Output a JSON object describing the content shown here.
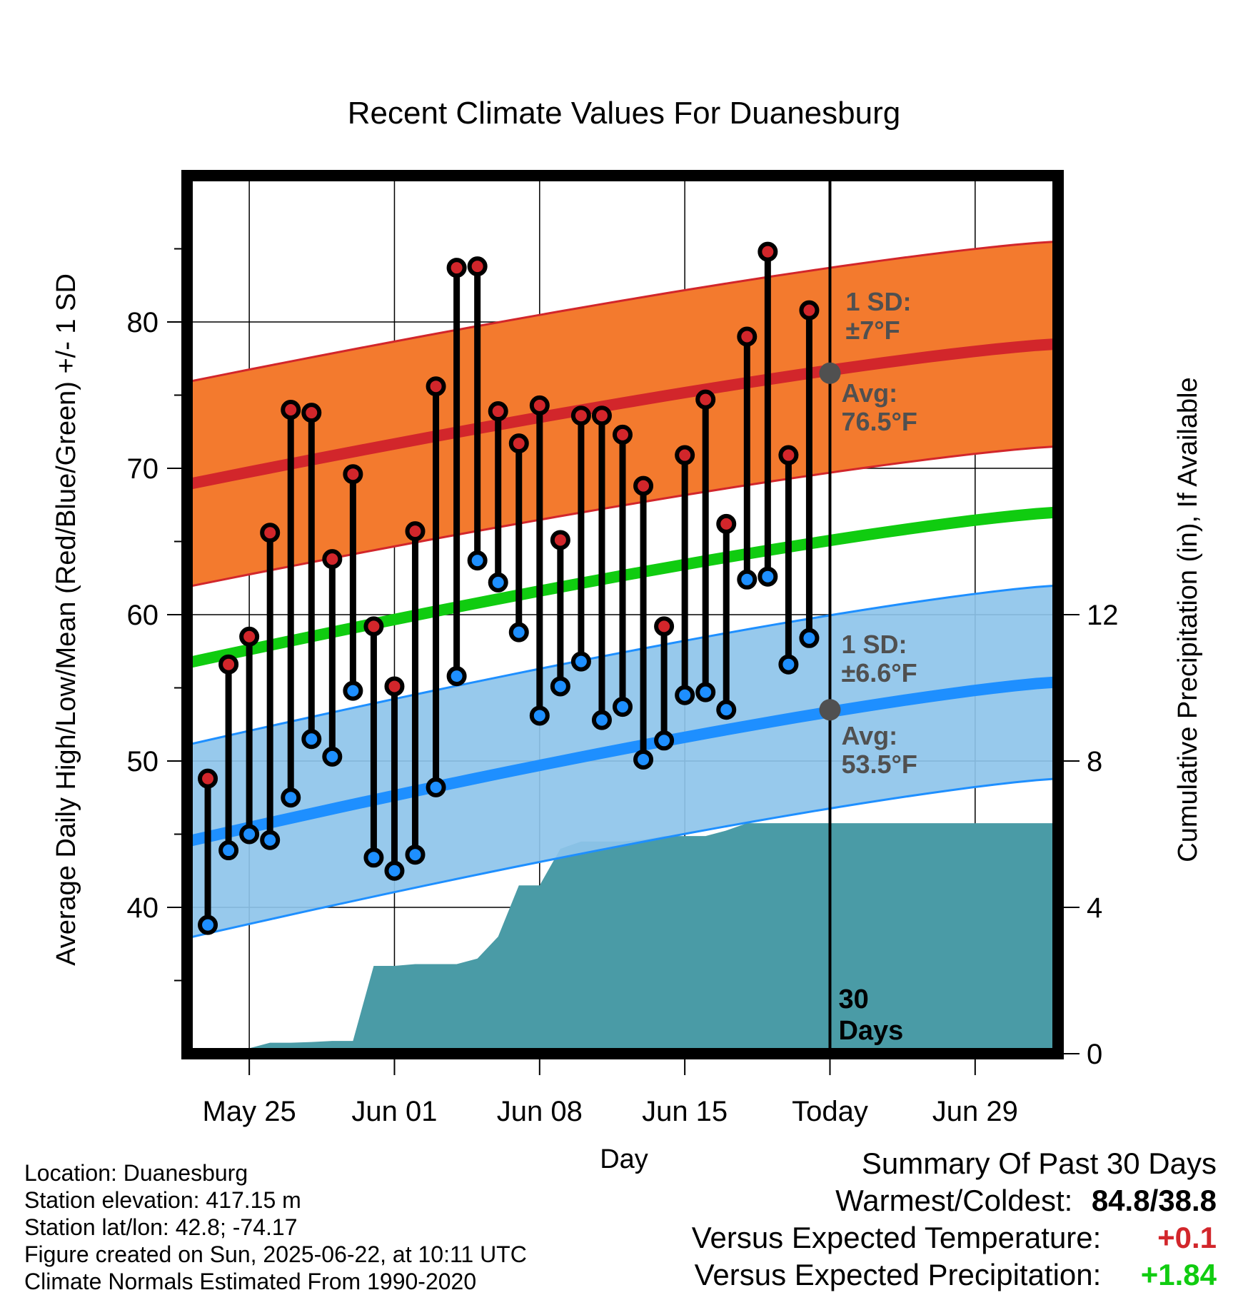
{
  "chart_data": {
    "type": "line",
    "title": "Recent Climate Values For Duanesburg",
    "xlabel": "Day",
    "ylabel": "Average Daily High/Low/Mean (Red/Blue/Green) +/- 1 SD",
    "y2label": "Cumulative Precipitation (in), If Available",
    "ylim": [
      30,
      90
    ],
    "y2lim": [
      0,
      24
    ],
    "yticks": [
      40,
      50,
      60,
      70,
      80
    ],
    "y2ticks": [
      0,
      4,
      8,
      12
    ],
    "x_range": [
      "2025-05-22",
      "2025-07-03"
    ],
    "x_tick_labels": [
      {
        "date": "2025-05-25",
        "label": "May 25"
      },
      {
        "date": "2025-06-01",
        "label": "Jun 01"
      },
      {
        "date": "2025-06-08",
        "label": "Jun 08"
      },
      {
        "date": "2025-06-15",
        "label": "Jun 15"
      },
      {
        "date": "2025-06-22",
        "label": "Today"
      },
      {
        "date": "2025-06-29",
        "label": "Jun 29"
      }
    ],
    "grid": true,
    "today": "2025-06-22",
    "window_label": "30\nDays",
    "daily_dates": [
      "2025-05-23",
      "2025-05-24",
      "2025-05-25",
      "2025-05-26",
      "2025-05-27",
      "2025-05-28",
      "2025-05-29",
      "2025-05-30",
      "2025-05-31",
      "2025-06-01",
      "2025-06-02",
      "2025-06-03",
      "2025-06-04",
      "2025-06-05",
      "2025-06-06",
      "2025-06-07",
      "2025-06-08",
      "2025-06-09",
      "2025-06-10",
      "2025-06-11",
      "2025-06-12",
      "2025-06-13",
      "2025-06-14",
      "2025-06-15",
      "2025-06-16",
      "2025-06-17",
      "2025-06-18",
      "2025-06-19",
      "2025-06-20",
      "2025-06-21"
    ],
    "series": [
      {
        "name": "High",
        "color": "#d2262b",
        "values": [
          48.8,
          56.6,
          58.5,
          65.6,
          74.0,
          73.8,
          63.8,
          69.6,
          59.2,
          55.1,
          65.7,
          75.6,
          83.7,
          83.8,
          73.9,
          71.7,
          74.3,
          65.1,
          73.6,
          73.6,
          72.3,
          68.8,
          59.2,
          70.9,
          74.7,
          66.2,
          79.0,
          84.8,
          70.9,
          80.8
        ]
      },
      {
        "name": "Low",
        "color": "#1e8fff",
        "values": [
          38.8,
          43.9,
          45.0,
          44.6,
          47.5,
          51.5,
          50.3,
          54.8,
          43.4,
          42.5,
          43.6,
          48.2,
          55.8,
          63.7,
          62.2,
          58.8,
          53.1,
          55.1,
          56.8,
          52.8,
          53.7,
          50.1,
          51.4,
          54.5,
          54.7,
          53.5,
          62.4,
          62.6,
          56.6,
          58.4
        ]
      },
      {
        "name": "Avg High",
        "color": "#d2262b",
        "start": 68.9,
        "end": 78.5,
        "sd": 7.0
      },
      {
        "name": "Avg Low",
        "color": "#1e8fff",
        "start": 44.5,
        "end": 55.4,
        "sd": 6.6
      },
      {
        "name": "Avg Mean",
        "color": "#10cc10",
        "start": 56.7,
        "end": 67.0
      }
    ],
    "precipitation": {
      "color": "#4a9ba6",
      "points": [
        {
          "date": "2025-05-22",
          "value": 0.0
        },
        {
          "date": "2025-05-23",
          "value": 0.05
        },
        {
          "date": "2025-05-24",
          "value": 0.08
        },
        {
          "date": "2025-05-25",
          "value": 0.15
        },
        {
          "date": "2025-05-26",
          "value": 0.3
        },
        {
          "date": "2025-05-27",
          "value": 0.3
        },
        {
          "date": "2025-05-28",
          "value": 0.32
        },
        {
          "date": "2025-05-29",
          "value": 0.35
        },
        {
          "date": "2025-05-30",
          "value": 0.35
        },
        {
          "date": "2025-05-31",
          "value": 2.4
        },
        {
          "date": "2025-06-01",
          "value": 2.4
        },
        {
          "date": "2025-06-02",
          "value": 2.45
        },
        {
          "date": "2025-06-03",
          "value": 2.45
        },
        {
          "date": "2025-06-04",
          "value": 2.45
        },
        {
          "date": "2025-06-05",
          "value": 2.6
        },
        {
          "date": "2025-06-06",
          "value": 3.2
        },
        {
          "date": "2025-06-07",
          "value": 4.6
        },
        {
          "date": "2025-06-08",
          "value": 4.6
        },
        {
          "date": "2025-06-09",
          "value": 5.6
        },
        {
          "date": "2025-06-10",
          "value": 5.8
        },
        {
          "date": "2025-06-11",
          "value": 5.8
        },
        {
          "date": "2025-06-12",
          "value": 5.8
        },
        {
          "date": "2025-06-13",
          "value": 5.85
        },
        {
          "date": "2025-06-14",
          "value": 5.95
        },
        {
          "date": "2025-06-15",
          "value": 5.95
        },
        {
          "date": "2025-06-16",
          "value": 5.95
        },
        {
          "date": "2025-06-17",
          "value": 6.1
        },
        {
          "date": "2025-06-18",
          "value": 6.3
        },
        {
          "date": "2025-06-19",
          "value": 6.3
        },
        {
          "date": "2025-06-20",
          "value": 6.3
        },
        {
          "date": "2025-06-21",
          "value": 6.3
        },
        {
          "date": "2025-06-22",
          "value": 6.3
        },
        {
          "date": "2025-07-03",
          "value": 6.3
        }
      ]
    },
    "annotations": [
      {
        "id": "high_sd",
        "lines": [
          "1 SD:",
          "±7°F"
        ]
      },
      {
        "id": "high_avg",
        "lines": [
          "Avg:",
          "76.5°F"
        ],
        "value": 76.5
      },
      {
        "id": "low_sd",
        "lines": [
          "1 SD:",
          "±6.6°F"
        ]
      },
      {
        "id": "low_avg",
        "lines": [
          "Avg:",
          "53.5°F"
        ],
        "value": 53.5
      }
    ]
  },
  "info": {
    "location": "Location: Duanesburg",
    "elevation": "Station elevation: 417.15 m",
    "latlon": "Station lat/lon: 42.8; -74.17",
    "created": "Figure created on Sun, 2025-06-22, at 10:11 UTC",
    "normals": "Climate Normals Estimated From 1990-2020"
  },
  "summary": {
    "title": "Summary Of Past 30 Days",
    "warm_cold_label": "Warmest/Coldest:",
    "warm_cold_value": "84.8/38.8",
    "temp_label": "Versus Expected Temperature:",
    "temp_value": "+0.1",
    "temp_color": "#d2262b",
    "precip_label": "Versus Expected Precipitation:",
    "precip_value": "+1.84",
    "precip_color": "#10cc10"
  }
}
